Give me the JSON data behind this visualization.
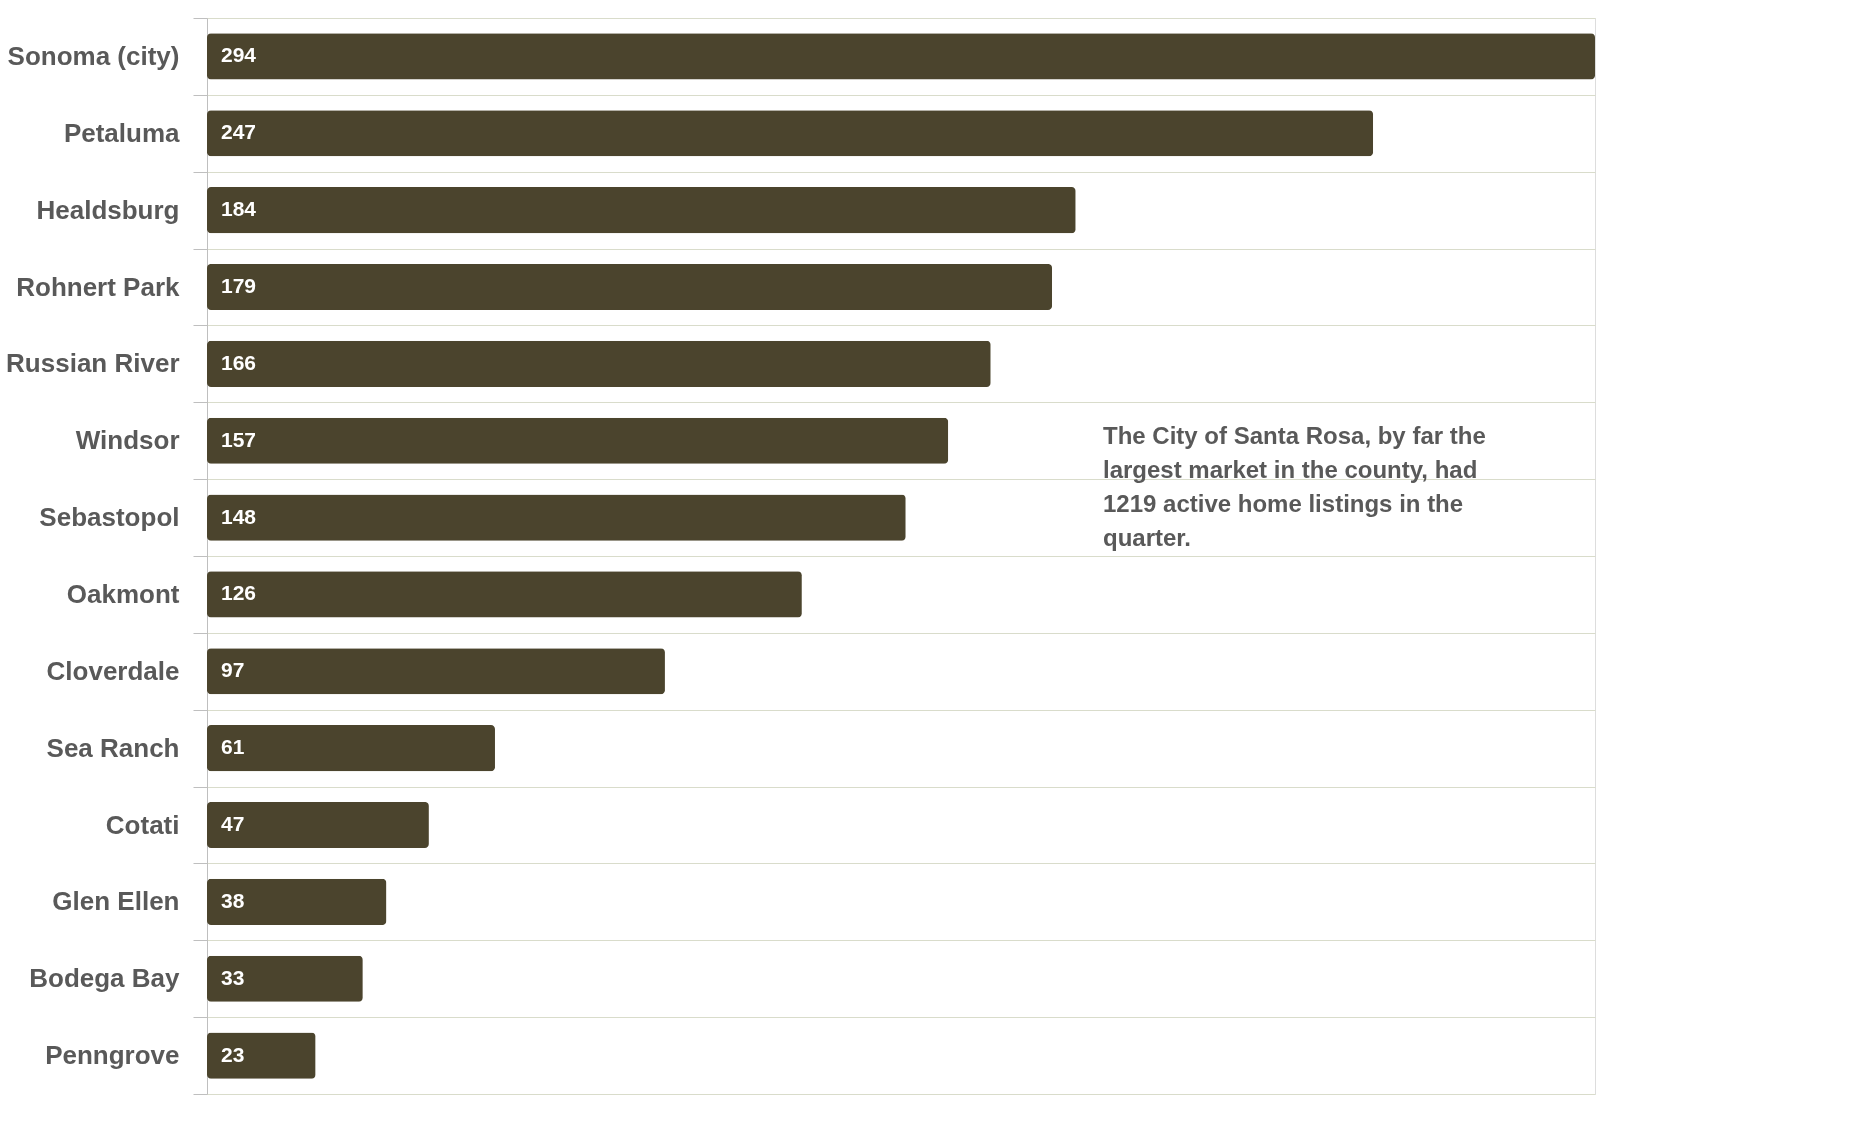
{
  "chart_data": {
    "type": "bar",
    "orientation": "horizontal",
    "data_labels": true,
    "grid": "y",
    "categories": [
      "Sonoma (city)",
      "Petaluma",
      "Healdsburg",
      "Rohnert Park",
      "Russian River",
      "Windsor",
      "Sebastopol",
      "Oakmont",
      "Cloverdale",
      "Sea Ranch",
      "Cotati",
      "Glen Ellen",
      "Bodega Bay",
      "Penngrove"
    ],
    "values": [
      294,
      247,
      184,
      179,
      166,
      157,
      148,
      126,
      97,
      61,
      47,
      38,
      33,
      23
    ],
    "color": "#4b442d",
    "annotations": [
      "The City of Santa Rosa, by far the largest market in the county, had 1219 active home listings in the quarter."
    ]
  }
}
